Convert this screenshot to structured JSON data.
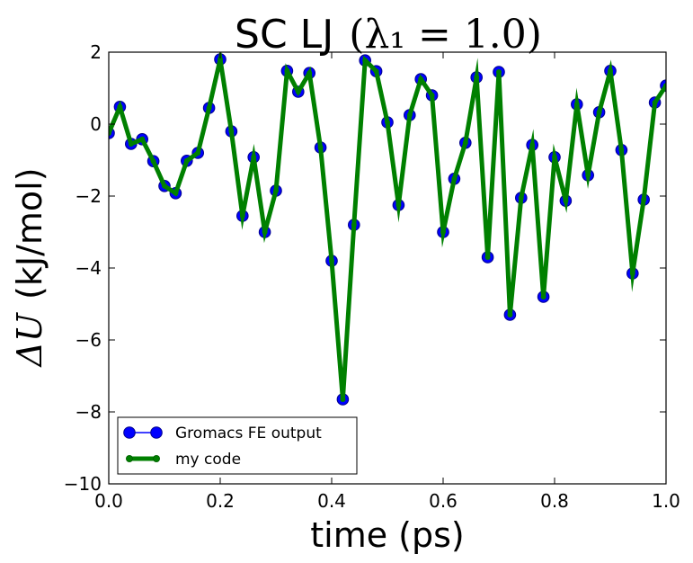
{
  "chart_data": {
    "type": "line",
    "title_prefix": "SC LJ",
    "title_math": "(λ₁ = 1.0)",
    "xlabel": "time (ps)",
    "ylabel_math": "ΔU",
    "ylabel_unit": "(kJ/mol)",
    "xlim": [
      0.0,
      1.0
    ],
    "ylim": [
      -10,
      2
    ],
    "xticks": [
      0.0,
      0.2,
      0.4,
      0.6,
      0.8,
      1.0
    ],
    "xtick_labels": [
      "0.0",
      "0.2",
      "0.4",
      "0.6",
      "0.8",
      "1.0"
    ],
    "yticks": [
      -10,
      -8,
      -6,
      -4,
      -2,
      0,
      2
    ],
    "ytick_labels": [
      "−10",
      "−8",
      "−6",
      "−4",
      "−2",
      "0",
      "2"
    ],
    "grid": false,
    "legend_position": "lower-left",
    "x": [
      0.0,
      0.02,
      0.04,
      0.06,
      0.08,
      0.1,
      0.12,
      0.14,
      0.16,
      0.18,
      0.2,
      0.22,
      0.24,
      0.26,
      0.28,
      0.3,
      0.32,
      0.34,
      0.36,
      0.38,
      0.4,
      0.42,
      0.44,
      0.46,
      0.48,
      0.5,
      0.52,
      0.54,
      0.56,
      0.58,
      0.6,
      0.62,
      0.64,
      0.66,
      0.68,
      0.7,
      0.72,
      0.74,
      0.76,
      0.78,
      0.8,
      0.82,
      0.84,
      0.86,
      0.88,
      0.9,
      0.92,
      0.94,
      0.96,
      0.98,
      1.0
    ],
    "series": [
      {
        "name": "Gromacs FE output",
        "color": "#0000ff",
        "edge_color": "#00008b",
        "style": "marker-line",
        "values": [
          -0.25,
          0.48,
          -0.55,
          -0.42,
          -1.03,
          -1.72,
          -1.92,
          -1.02,
          -0.8,
          0.45,
          1.8,
          -0.2,
          -2.55,
          -0.92,
          -3.0,
          -1.85,
          1.48,
          0.9,
          1.42,
          -0.65,
          -3.8,
          -7.65,
          -2.8,
          1.77,
          1.47,
          0.05,
          -2.25,
          0.25,
          1.25,
          0.8,
          -3.0,
          -1.52,
          -0.52,
          1.3,
          -3.7,
          1.45,
          -5.3,
          -2.05,
          -0.58,
          -4.8,
          -0.92,
          -2.13,
          0.55,
          -1.42,
          0.33,
          1.48,
          -0.72,
          -4.15,
          -2.1,
          0.6,
          1.07
        ]
      },
      {
        "name": "my code",
        "color": "#008000",
        "edge_color": "#006400",
        "style": "thick-line",
        "values": [
          -0.25,
          0.48,
          -0.55,
          -0.42,
          -1.03,
          -1.72,
          -1.92,
          -1.02,
          -0.8,
          0.45,
          1.8,
          -0.2,
          -2.55,
          -0.92,
          -3.0,
          -1.85,
          1.48,
          0.9,
          1.42,
          -0.65,
          -3.8,
          -7.65,
          -2.8,
          1.77,
          1.47,
          0.05,
          -2.25,
          0.25,
          1.25,
          0.8,
          -3.0,
          -1.52,
          -0.52,
          1.3,
          -3.7,
          1.45,
          -5.3,
          -2.05,
          -0.58,
          -4.8,
          -0.92,
          -2.13,
          0.55,
          -1.42,
          0.33,
          1.48,
          -0.72,
          -4.15,
          -2.1,
          0.6,
          1.07
        ]
      }
    ]
  }
}
